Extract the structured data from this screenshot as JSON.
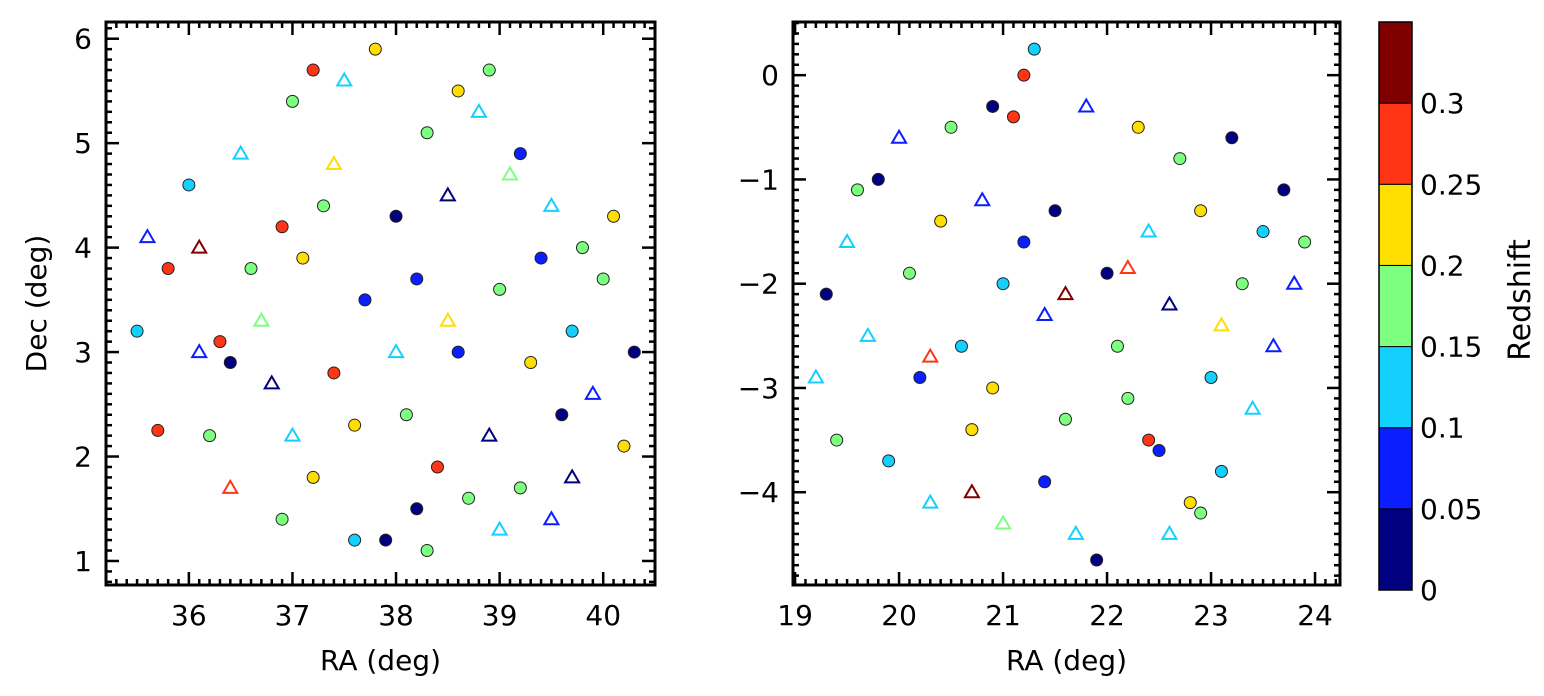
{
  "chart_data": [
    {
      "type": "scatter",
      "xlabel": "RA (deg)",
      "ylabel": "Dec (deg)",
      "xlim": [
        35.2,
        40.5
      ],
      "ylim": [
        0.77,
        6.16
      ],
      "xticks": [
        "36",
        "37",
        "38",
        "39",
        "40"
      ],
      "yticks": [
        "1",
        "2",
        "3",
        "4",
        "5",
        "6"
      ],
      "grid": false,
      "marker_legend": {
        "c": "filled circle",
        "t": "open triangle"
      },
      "points": [
        [
          35.5,
          3.2,
          0.125,
          "c"
        ],
        [
          35.7,
          2.25,
          0.28,
          "c"
        ],
        [
          35.8,
          3.8,
          0.28,
          "c"
        ],
        [
          36.0,
          4.6,
          0.125,
          "c"
        ],
        [
          36.1,
          3.0,
          0.075,
          "t"
        ],
        [
          36.2,
          2.2,
          0.175,
          "c"
        ],
        [
          36.3,
          3.1,
          0.28,
          "c"
        ],
        [
          36.5,
          4.9,
          0.125,
          "t"
        ],
        [
          36.6,
          3.8,
          0.175,
          "c"
        ],
        [
          36.8,
          2.7,
          0.025,
          "t"
        ],
        [
          36.9,
          1.4,
          0.175,
          "c"
        ],
        [
          37.0,
          5.4,
          0.175,
          "c"
        ],
        [
          37.1,
          3.9,
          0.22,
          "c"
        ],
        [
          37.2,
          1.8,
          0.22,
          "c"
        ],
        [
          37.3,
          4.4,
          0.175,
          "c"
        ],
        [
          37.4,
          2.8,
          0.28,
          "c"
        ],
        [
          37.5,
          5.6,
          0.125,
          "t"
        ],
        [
          37.6,
          1.2,
          0.125,
          "c"
        ],
        [
          37.7,
          3.5,
          0.075,
          "c"
        ],
        [
          37.8,
          5.9,
          0.22,
          "c"
        ],
        [
          37.9,
          1.2,
          0.025,
          "c"
        ],
        [
          38.0,
          4.3,
          0.025,
          "c"
        ],
        [
          38.1,
          2.4,
          0.175,
          "c"
        ],
        [
          38.2,
          3.7,
          0.075,
          "c"
        ],
        [
          38.3,
          5.1,
          0.175,
          "c"
        ],
        [
          38.4,
          1.9,
          0.28,
          "c"
        ],
        [
          38.5,
          4.5,
          0.025,
          "t"
        ],
        [
          38.6,
          3.0,
          0.075,
          "c"
        ],
        [
          38.7,
          1.6,
          0.175,
          "c"
        ],
        [
          38.8,
          5.3,
          0.125,
          "t"
        ],
        [
          38.9,
          2.2,
          0.025,
          "t"
        ],
        [
          39.0,
          3.6,
          0.175,
          "c"
        ],
        [
          39.1,
          4.7,
          0.175,
          "t"
        ],
        [
          39.2,
          1.7,
          0.175,
          "c"
        ],
        [
          39.3,
          2.9,
          0.22,
          "c"
        ],
        [
          39.4,
          3.9,
          0.075,
          "c"
        ],
        [
          39.5,
          4.4,
          0.125,
          "t"
        ],
        [
          39.6,
          2.4,
          0.025,
          "c"
        ],
        [
          39.7,
          3.2,
          0.125,
          "c"
        ],
        [
          39.8,
          4.0,
          0.175,
          "c"
        ],
        [
          39.9,
          2.6,
          0.075,
          "t"
        ],
        [
          40.0,
          3.7,
          0.175,
          "c"
        ],
        [
          40.1,
          4.3,
          0.22,
          "c"
        ],
        [
          40.3,
          3.0,
          0.025,
          "c"
        ],
        [
          40.2,
          2.1,
          0.22,
          "c"
        ],
        [
          39.5,
          1.4,
          0.075,
          "t"
        ],
        [
          38.3,
          1.1,
          0.175,
          "c"
        ],
        [
          37.2,
          5.7,
          0.28,
          "c"
        ],
        [
          36.1,
          4.0,
          0.325,
          "t"
        ],
        [
          36.4,
          1.7,
          0.28,
          "t"
        ],
        [
          38.9,
          5.7,
          0.175,
          "c"
        ],
        [
          37.6,
          2.3,
          0.22,
          "c"
        ],
        [
          38.5,
          3.3,
          0.22,
          "t"
        ],
        [
          36.7,
          3.3,
          0.175,
          "t"
        ],
        [
          39.2,
          4.9,
          0.075,
          "c"
        ],
        [
          37.4,
          4.8,
          0.22,
          "t"
        ],
        [
          38.0,
          3.0,
          0.125,
          "t"
        ],
        [
          36.9,
          4.2,
          0.28,
          "c"
        ],
        [
          39.7,
          1.8,
          0.025,
          "t"
        ],
        [
          35.6,
          4.1,
          0.075,
          "t"
        ],
        [
          38.6,
          5.5,
          0.22,
          "c"
        ],
        [
          37.0,
          2.2,
          0.125,
          "t"
        ],
        [
          38.2,
          1.5,
          0.025,
          "c"
        ],
        [
          39.0,
          1.3,
          0.125,
          "t"
        ],
        [
          36.4,
          2.9,
          0.025,
          "c"
        ]
      ]
    },
    {
      "type": "scatter",
      "xlabel": "RA (deg)",
      "ylabel": "",
      "xlim": [
        18.98,
        24.24
      ],
      "ylim": [
        -4.89,
        0.51
      ],
      "xticks": [
        "19",
        "20",
        "21",
        "22",
        "23",
        "24"
      ],
      "yticks": [
        "0",
        "−1",
        "−2",
        "−3",
        "−4"
      ],
      "grid": false,
      "points": [
        [
          19.3,
          -2.1,
          0.025,
          "c"
        ],
        [
          19.4,
          -3.5,
          0.175,
          "c"
        ],
        [
          19.6,
          -1.1,
          0.175,
          "c"
        ],
        [
          19.7,
          -2.5,
          0.125,
          "t"
        ],
        [
          19.8,
          -1.0,
          0.025,
          "c"
        ],
        [
          19.9,
          -3.7,
          0.125,
          "c"
        ],
        [
          20.0,
          -0.6,
          0.075,
          "t"
        ],
        [
          20.1,
          -1.9,
          0.175,
          "c"
        ],
        [
          20.2,
          -2.9,
          0.075,
          "c"
        ],
        [
          20.3,
          -4.1,
          0.125,
          "t"
        ],
        [
          20.4,
          -1.4,
          0.22,
          "c"
        ],
        [
          20.5,
          -0.5,
          0.175,
          "c"
        ],
        [
          20.6,
          -2.6,
          0.125,
          "c"
        ],
        [
          20.7,
          -3.4,
          0.22,
          "c"
        ],
        [
          20.8,
          -1.2,
          0.075,
          "t"
        ],
        [
          20.9,
          -3.0,
          0.22,
          "c"
        ],
        [
          21.0,
          -4.3,
          0.175,
          "t"
        ],
        [
          21.1,
          -0.4,
          0.28,
          "c"
        ],
        [
          21.2,
          -1.6,
          0.075,
          "c"
        ],
        [
          21.3,
          0.25,
          0.125,
          "c"
        ],
        [
          21.4,
          -2.3,
          0.075,
          "t"
        ],
        [
          21.5,
          -1.3,
          0.025,
          "c"
        ],
        [
          21.6,
          -3.3,
          0.175,
          "c"
        ],
        [
          21.7,
          -4.4,
          0.125,
          "t"
        ],
        [
          21.8,
          -0.3,
          0.075,
          "t"
        ],
        [
          21.9,
          -4.65,
          0.025,
          "c"
        ],
        [
          22.0,
          -1.9,
          0.025,
          "c"
        ],
        [
          22.1,
          -2.6,
          0.175,
          "c"
        ],
        [
          22.2,
          -3.1,
          0.175,
          "c"
        ],
        [
          22.3,
          -0.5,
          0.22,
          "c"
        ],
        [
          22.4,
          -1.5,
          0.125,
          "t"
        ],
        [
          22.5,
          -3.6,
          0.075,
          "c"
        ],
        [
          22.6,
          -2.2,
          0.025,
          "t"
        ],
        [
          22.7,
          -0.8,
          0.175,
          "c"
        ],
        [
          22.8,
          -4.1,
          0.22,
          "c"
        ],
        [
          22.9,
          -1.3,
          0.22,
          "c"
        ],
        [
          23.0,
          -2.9,
          0.125,
          "c"
        ],
        [
          23.1,
          -3.8,
          0.125,
          "c"
        ],
        [
          23.2,
          -0.6,
          0.025,
          "c"
        ],
        [
          23.3,
          -2.0,
          0.175,
          "c"
        ],
        [
          23.4,
          -3.2,
          0.125,
          "t"
        ],
        [
          23.5,
          -1.5,
          0.125,
          "c"
        ],
        [
          23.6,
          -2.6,
          0.075,
          "t"
        ],
        [
          23.7,
          -1.1,
          0.025,
          "c"
        ],
        [
          23.8,
          -2.0,
          0.075,
          "t"
        ],
        [
          23.9,
          -1.6,
          0.175,
          "c"
        ],
        [
          21.2,
          0.0,
          0.28,
          "c"
        ],
        [
          20.3,
          -2.7,
          0.28,
          "t"
        ],
        [
          22.2,
          -1.85,
          0.28,
          "t"
        ],
        [
          21.6,
          -2.1,
          0.325,
          "t"
        ],
        [
          20.7,
          -4.0,
          0.325,
          "t"
        ],
        [
          22.4,
          -3.5,
          0.28,
          "c"
        ],
        [
          19.5,
          -1.6,
          0.125,
          "t"
        ],
        [
          21.0,
          -2.0,
          0.125,
          "c"
        ],
        [
          22.9,
          -4.2,
          0.175,
          "c"
        ],
        [
          19.2,
          -2.9,
          0.125,
          "t"
        ],
        [
          20.9,
          -0.3,
          0.025,
          "c"
        ],
        [
          22.6,
          -4.4,
          0.125,
          "t"
        ],
        [
          21.4,
          -3.9,
          0.075,
          "c"
        ],
        [
          23.1,
          -2.4,
          0.22,
          "t"
        ]
      ]
    }
  ],
  "colorbar": {
    "label": "Redshift",
    "range": [
      0,
      0.35
    ],
    "bounds": [
      0,
      0.05,
      0.1,
      0.15,
      0.2,
      0.25,
      0.3,
      0.35
    ],
    "colors": [
      "#000080",
      "#0a1eff",
      "#14d0ff",
      "#7dff80",
      "#ffde00",
      "#ff3516",
      "#800000"
    ],
    "tick_labels": [
      "0",
      "0.05",
      "0.1",
      "0.15",
      "0.2",
      "0.25",
      "0.3"
    ]
  }
}
